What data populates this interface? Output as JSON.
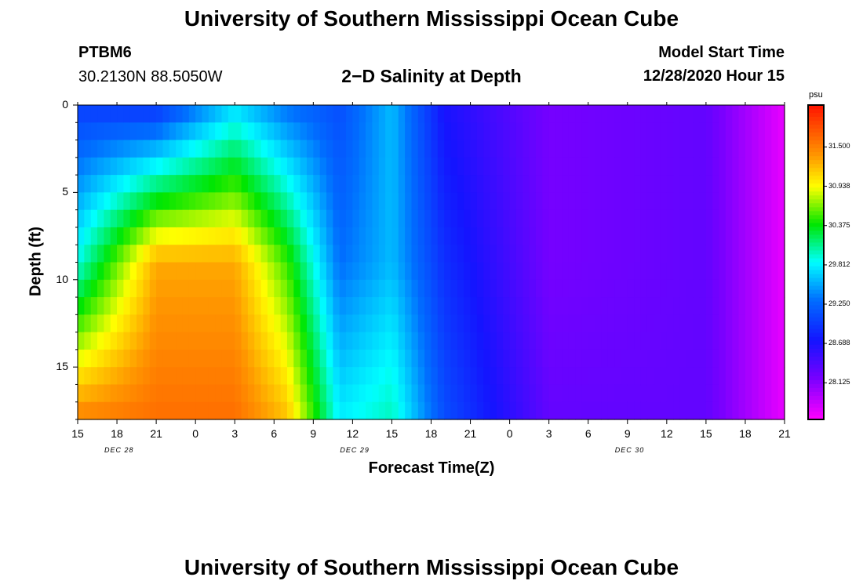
{
  "header": {
    "title_top": "University of Southern Mississippi Ocean Cube",
    "title_bottom": "University of Southern Mississippi Ocean Cube",
    "station_id": "PTBM6",
    "station_coords": "30.2130N 88.5050W",
    "model_start_label": "Model Start Time",
    "model_start_value": "12/28/2020 Hour 15"
  },
  "chart_data": {
    "type": "heatmap",
    "title": "2−D Salinity at Depth",
    "xlabel": "Forecast Time(Z)",
    "ylabel": "Depth (ft)",
    "units": "psu",
    "x_tick_labels": [
      "15",
      "18",
      "21",
      "0",
      "3",
      "6",
      "9",
      "12",
      "15",
      "18",
      "21",
      "0",
      "3",
      "6",
      "9",
      "12",
      "15",
      "18",
      "21"
    ],
    "date_labels": [
      {
        "text": "DEC 28",
        "at_tick": 1
      },
      {
        "text": "DEC 29",
        "at_tick": 7
      },
      {
        "text": "DEC 30",
        "at_tick": 14
      }
    ],
    "x_range_hours": [
      0,
      54
    ],
    "y_range_ft": [
      0,
      18
    ],
    "y_ticks": [
      0,
      5,
      10,
      15
    ],
    "y_tick_labels": [
      "0",
      "5",
      "10",
      "15"
    ],
    "value_range": [
      27.6,
      32.1
    ],
    "colorbar_ticks": [
      "31.500",
      "30.938",
      "30.375",
      "29.812",
      "29.250",
      "28.688",
      "28.125"
    ],
    "colorbar_values": [
      31.5,
      30.938,
      30.375,
      29.812,
      29.25,
      28.688,
      28.125
    ],
    "approx_salinity": [
      {
        "hour": 0,
        "surface": 29.0,
        "mid": 29.9,
        "bottom": 31.5
      },
      {
        "hour": 6,
        "surface": 28.9,
        "mid": 31.3,
        "bottom": 31.6
      },
      {
        "hour": 12,
        "surface": 29.7,
        "mid": 31.3,
        "bottom": 31.6
      },
      {
        "hour": 16,
        "surface": 29.3,
        "mid": 30.5,
        "bottom": 31.2
      },
      {
        "hour": 20,
        "surface": 29.1,
        "mid": 29.3,
        "bottom": 29.8
      },
      {
        "hour": 24,
        "surface": 29.6,
        "mid": 29.6,
        "bottom": 30.0
      },
      {
        "hour": 28,
        "surface": 28.7,
        "mid": 28.9,
        "bottom": 29.1
      },
      {
        "hour": 36,
        "surface": 28.2,
        "mid": 28.2,
        "bottom": 28.3
      },
      {
        "hour": 48,
        "surface": 28.3,
        "mid": 28.3,
        "bottom": 28.3
      },
      {
        "hour": 54,
        "surface": 27.7,
        "mid": 27.7,
        "bottom": 27.7
      }
    ]
  }
}
